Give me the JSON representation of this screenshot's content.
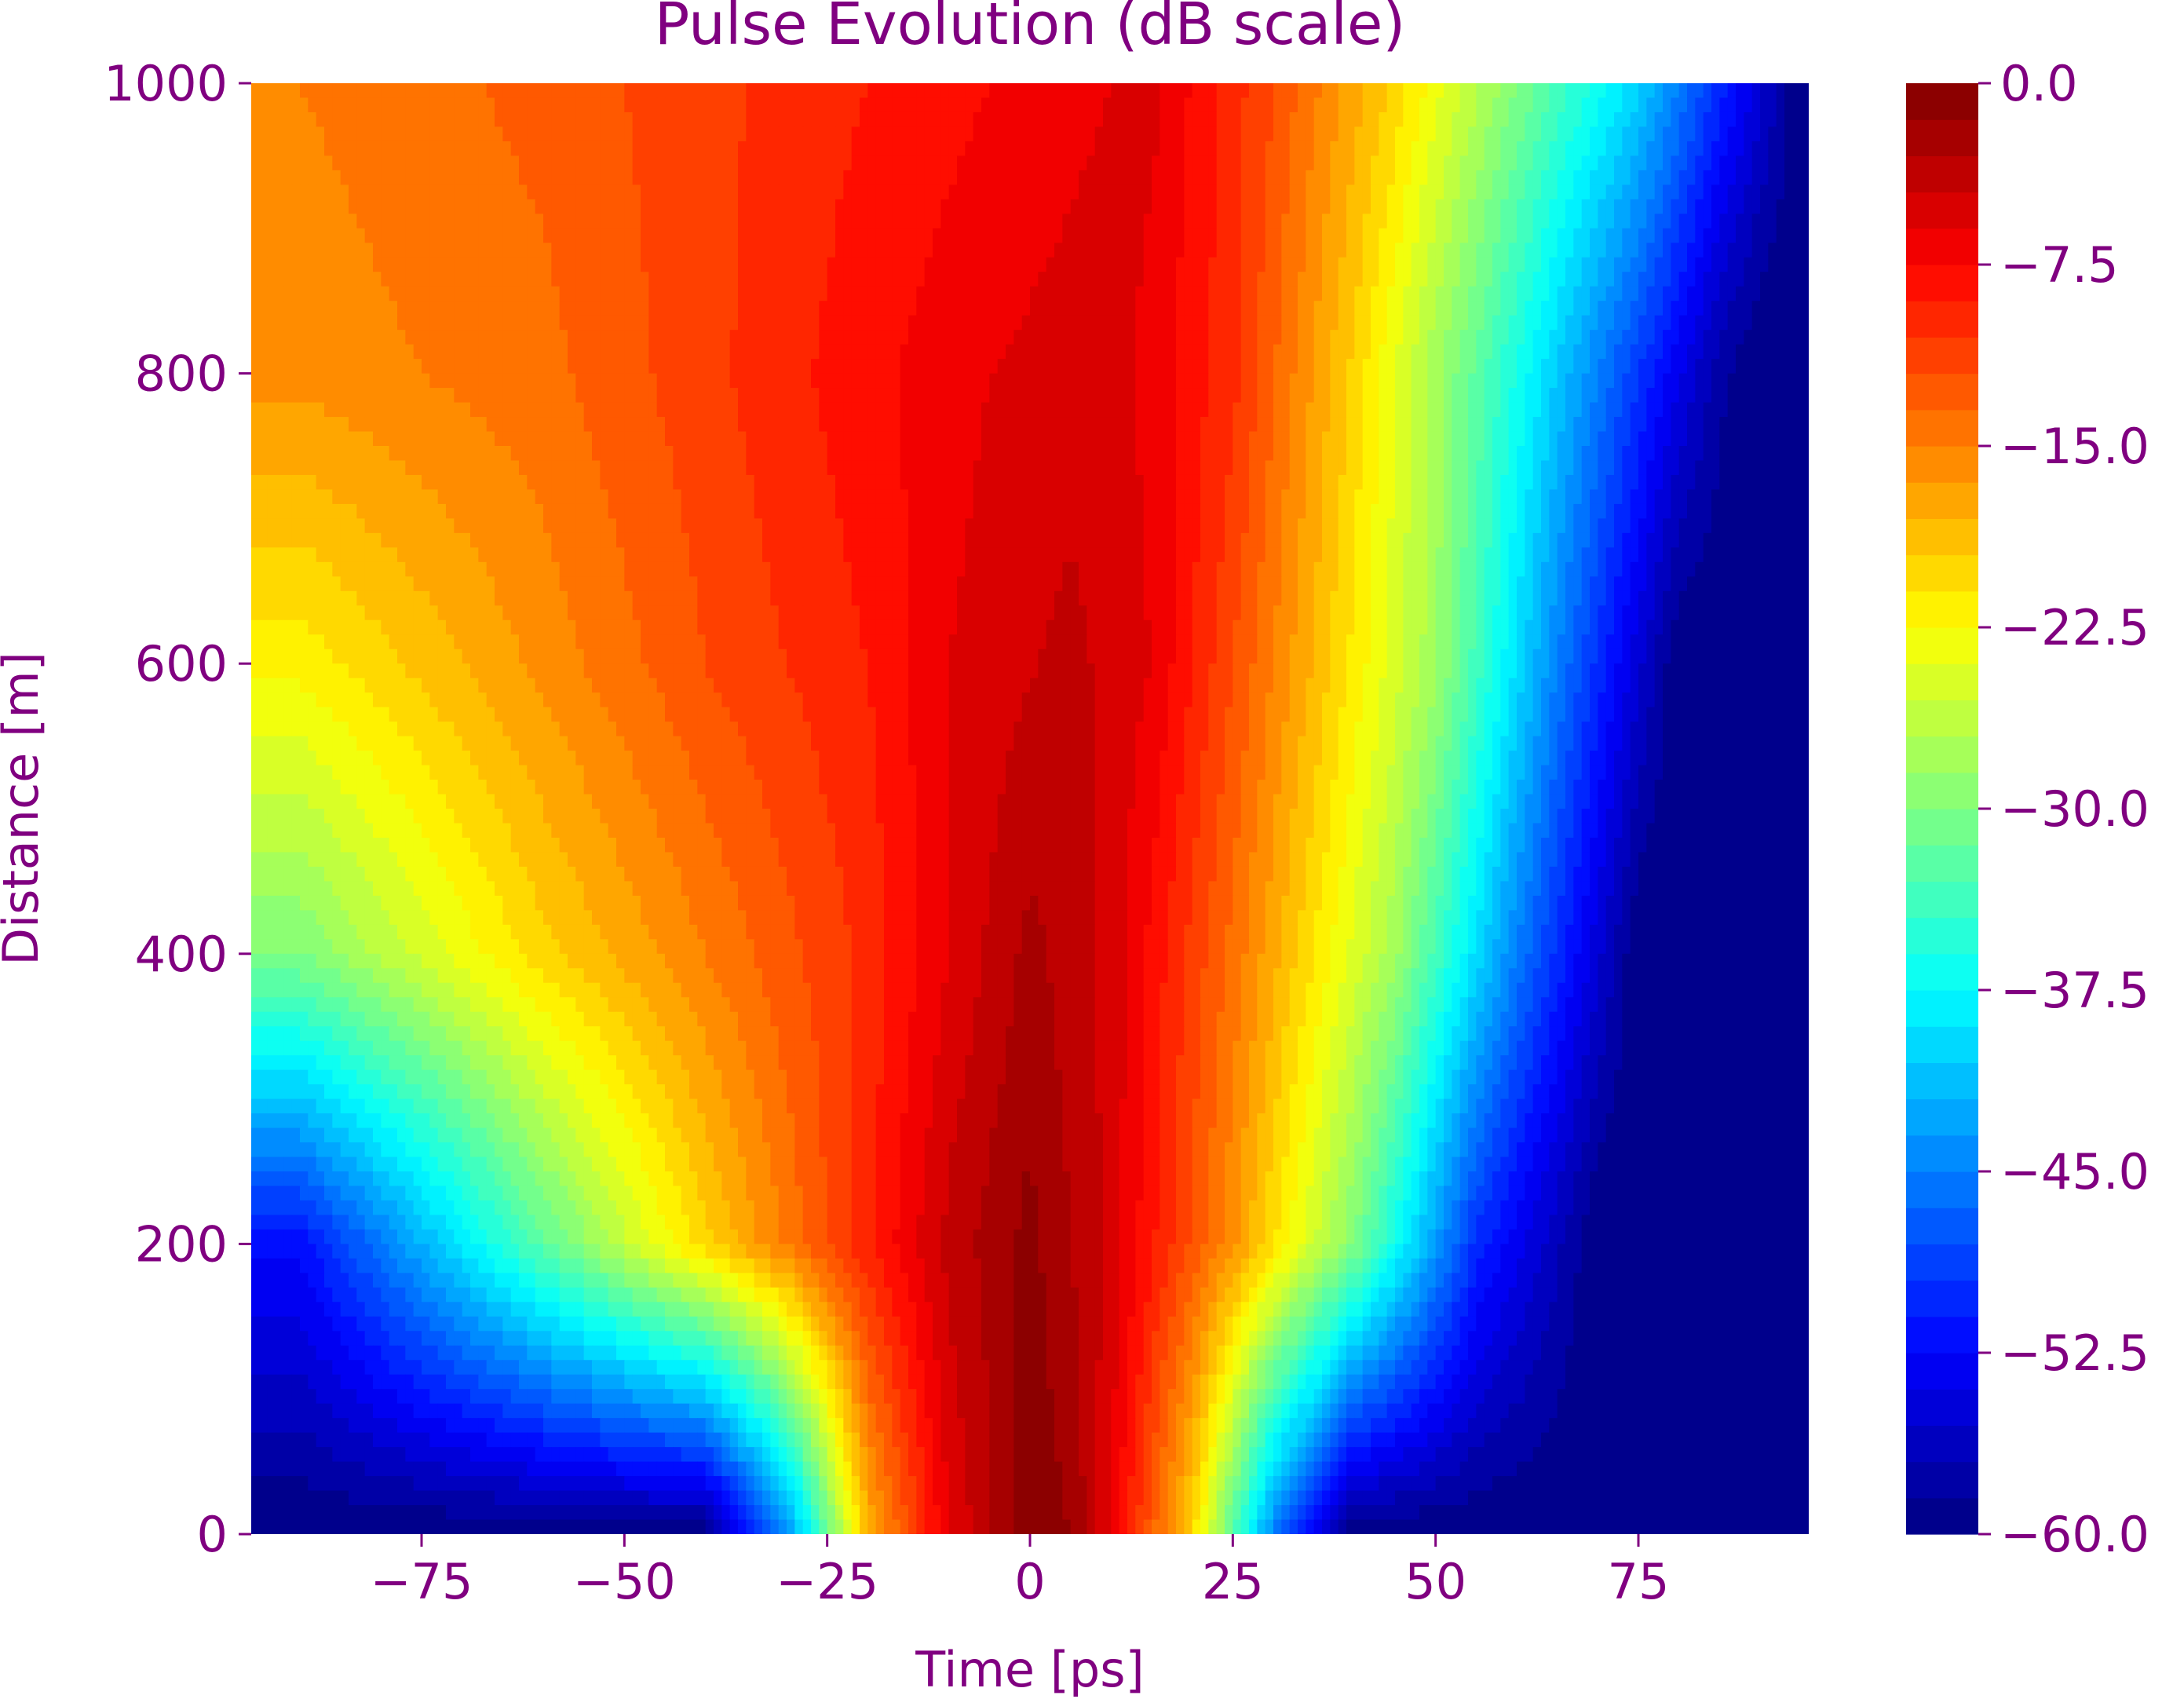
{
  "chart_data": {
    "type": "heatmap",
    "subtype": "filled-contour",
    "title": "Pulse Evolution (dB scale)",
    "xlabel": "Time [ps]",
    "ylabel": "Distance [m]",
    "xlim": [
      -96,
      96
    ],
    "ylim": [
      0,
      1000
    ],
    "x_ticks": [
      -75,
      -50,
      -25,
      0,
      25,
      50,
      75
    ],
    "x_tick_labels": [
      "−75",
      "−50",
      "−25",
      "0",
      "25",
      "50",
      "75"
    ],
    "y_ticks": [
      0,
      200,
      400,
      600,
      800,
      1000
    ],
    "y_tick_labels": [
      "0",
      "200",
      "400",
      "600",
      "800",
      "1000"
    ],
    "colorbar": {
      "range": [
        -60.0,
        0.0
      ],
      "levels": 40,
      "colormap": "jet",
      "ticks": [
        0.0,
        -7.5,
        -15.0,
        -22.5,
        -30.0,
        -37.5,
        -45.0,
        -52.5,
        -60.0
      ],
      "tick_labels": [
        "0.0",
        "−7.5",
        "−15.0",
        "−22.5",
        "−30.0",
        "−37.5",
        "−45.0",
        "−52.5",
        "−60.0"
      ]
    },
    "field_samples": {
      "note_units": "time in ps, distance in m, power in dB (estimated from contour colors)",
      "rows": [
        {
          "distance": 0,
          "time": [
            -90,
            -40,
            -30,
            -20,
            -10,
            0,
            5,
            10,
            20,
            30,
            40,
            90
          ],
          "db": [
            -60,
            -60,
            -45,
            -18,
            -6,
            -0.5,
            -1.5,
            -6,
            -20,
            -45,
            -60,
            -60
          ]
        },
        {
          "distance": 200,
          "time": [
            -90,
            -60,
            -40,
            -25,
            -10,
            0,
            10,
            25,
            40,
            55,
            70,
            90
          ],
          "db": [
            -52,
            -32,
            -20,
            -12,
            -4,
            -1,
            -5,
            -16,
            -30,
            -50,
            -60,
            -60
          ]
        },
        {
          "distance": 400,
          "time": [
            -90,
            -60,
            -40,
            -20,
            -10,
            0,
            10,
            25,
            45,
            60,
            75,
            90
          ],
          "db": [
            -30,
            -20,
            -15,
            -10,
            -6,
            -2.5,
            -5,
            -14,
            -28,
            -45,
            -60,
            -60
          ]
        },
        {
          "distance": 600,
          "time": [
            -90,
            -60,
            -40,
            -20,
            -10,
            5,
            15,
            30,
            50,
            65,
            80,
            90
          ],
          "db": [
            -22,
            -16,
            -12,
            -9,
            -6,
            -4,
            -6,
            -15,
            -28,
            -45,
            -60,
            -60
          ]
        },
        {
          "distance": 800,
          "time": [
            -90,
            -60,
            -40,
            -20,
            -5,
            10,
            25,
            40,
            55,
            70,
            85,
            90
          ],
          "db": [
            -16,
            -14,
            -11,
            -8,
            -6,
            -5,
            -10,
            -20,
            -32,
            -45,
            -58,
            -60
          ]
        },
        {
          "distance": 1000,
          "time": [
            -90,
            -60,
            -40,
            -20,
            0,
            15,
            30,
            45,
            60,
            75,
            90,
            95
          ],
          "db": [
            -15,
            -13,
            -11,
            -9,
            -7,
            -5.5,
            -12,
            -20,
            -30,
            -40,
            -55,
            -60
          ]
        }
      ]
    },
    "colors": {
      "text": "#800080",
      "background": "#ffffff",
      "frame": "#800080"
    }
  }
}
